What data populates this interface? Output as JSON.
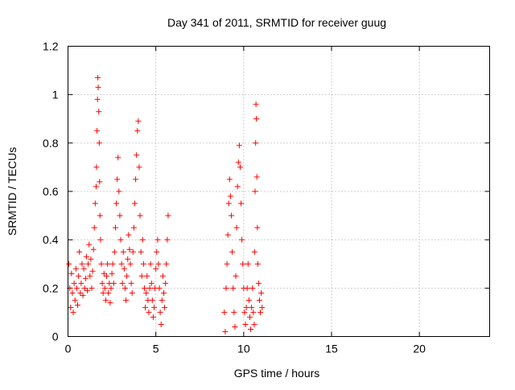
{
  "chart_data": {
    "type": "scatter",
    "title": "Day 341 of 2011, SRMTID for receiver guug",
    "xlabel": "GPS time / hours",
    "ylabel": "SRMTID / TECUs",
    "xlim": [
      0,
      24
    ],
    "ylim": [
      0,
      1.2
    ],
    "xticks": [
      0,
      5,
      10,
      15,
      20
    ],
    "yticks": [
      0,
      0.2,
      0.4,
      0.6,
      0.8,
      1,
      1.2
    ],
    "xtick_labels": [
      "0",
      "5",
      "10",
      "15",
      "20"
    ],
    "ytick_labels": [
      "0",
      "0.2",
      "0.4",
      "0.6",
      "0.8",
      "1",
      "1.2"
    ],
    "grid": true,
    "legend": "none",
    "marker": "plus",
    "color": "#ff0000",
    "series": [
      {
        "x": [
          0.05,
          0.1,
          0.15,
          0.2,
          0.25,
          0.3,
          0.35,
          0.4,
          0.45,
          0.5,
          0.55,
          0.6,
          0.65,
          0.7,
          0.75,
          0.8,
          0.85,
          0.9,
          0.95,
          1.0,
          1.05,
          1.1,
          1.15,
          1.2,
          1.25,
          1.3,
          1.35,
          1.4,
          1.45,
          1.5,
          1.55,
          1.6,
          1.62,
          1.65,
          1.68,
          1.7,
          1.72,
          1.75,
          1.78,
          1.8,
          1.82,
          1.85,
          1.9,
          1.95,
          2.0,
          2.05,
          2.1,
          2.15,
          2.2,
          2.25,
          2.3,
          2.35,
          2.4,
          2.45,
          2.5,
          2.55,
          2.6,
          2.65,
          2.7,
          2.75,
          2.8,
          2.85,
          2.9,
          2.95,
          3.0,
          3.05,
          3.1,
          3.15,
          3.2,
          3.25,
          3.3,
          3.35,
          3.4,
          3.45,
          3.5,
          3.55,
          3.6,
          3.65,
          3.7,
          3.75,
          3.8,
          3.85,
          3.9,
          3.95,
          4.0,
          4.05,
          4.1,
          4.15,
          4.2,
          4.25,
          4.3,
          4.35,
          4.4,
          4.45,
          4.5,
          4.55,
          4.6,
          4.65,
          4.7,
          4.75,
          4.8,
          4.85,
          4.9,
          4.95,
          5.0,
          5.05,
          5.1,
          5.15,
          5.2,
          5.25,
          5.3,
          5.35,
          5.4,
          5.45,
          5.5,
          5.55,
          5.6,
          5.65,
          5.7
        ],
        "y": [
          0.3,
          0.2,
          0.12,
          0.26,
          0.18,
          0.1,
          0.22,
          0.15,
          0.28,
          0.2,
          0.13,
          0.25,
          0.35,
          0.18,
          0.22,
          0.3,
          0.17,
          0.28,
          0.2,
          0.24,
          0.33,
          0.19,
          0.3,
          0.38,
          0.25,
          0.32,
          0.2,
          0.27,
          0.36,
          0.45,
          0.55,
          0.62,
          0.7,
          0.85,
          0.98,
          1.07,
          1.03,
          0.93,
          0.8,
          0.64,
          0.5,
          0.4,
          0.3,
          0.22,
          0.18,
          0.26,
          0.2,
          0.15,
          0.25,
          0.3,
          0.18,
          0.22,
          0.14,
          0.2,
          0.26,
          0.3,
          0.22,
          0.35,
          0.45,
          0.55,
          0.65,
          0.74,
          0.6,
          0.5,
          0.4,
          0.3,
          0.22,
          0.35,
          0.28,
          0.2,
          0.15,
          0.25,
          0.32,
          0.42,
          0.36,
          0.3,
          0.22,
          0.18,
          0.35,
          0.45,
          0.55,
          0.65,
          0.75,
          0.85,
          0.89,
          0.7,
          0.5,
          0.35,
          0.25,
          0.4,
          0.3,
          0.2,
          0.12,
          0.18,
          0.25,
          0.15,
          0.1,
          0.2,
          0.3,
          0.22,
          0.15,
          0.08,
          0.12,
          0.2,
          0.28,
          0.35,
          0.4,
          0.3,
          0.2,
          0.1,
          0.05,
          0.15,
          0.25,
          0.18,
          0.12,
          0.22,
          0.3,
          0.4,
          0.5
        ],
        "marker": "plus"
      },
      {
        "x": [
          8.9,
          8.95,
          9.0,
          9.05,
          9.1,
          9.15,
          9.2,
          9.25,
          9.3,
          9.35,
          9.4,
          9.45,
          9.5,
          9.55,
          9.6,
          9.65,
          9.7,
          9.75,
          9.8,
          9.85,
          9.9,
          9.95,
          10.0,
          10.05,
          10.1,
          10.15,
          10.2,
          10.25,
          10.3,
          10.35,
          10.4,
          10.45,
          10.5,
          10.55,
          10.6,
          10.62,
          10.65,
          10.68,
          10.7,
          10.72,
          10.75,
          10.78,
          10.8,
          10.85,
          10.9,
          10.95,
          11.0,
          11.05
        ],
        "y": [
          0.1,
          0.02,
          0.2,
          0.3,
          0.42,
          0.55,
          0.65,
          0.58,
          0.5,
          0.35,
          0.2,
          0.1,
          0.04,
          0.25,
          0.45,
          0.62,
          0.72,
          0.79,
          0.7,
          0.55,
          0.4,
          0.3,
          0.2,
          0.1,
          0.05,
          0.12,
          0.2,
          0.3,
          0.15,
          0.08,
          0.03,
          0.12,
          0.2,
          0.1,
          0.05,
          0.35,
          0.6,
          0.8,
          0.96,
          0.9,
          0.66,
          0.45,
          0.3,
          0.22,
          0.15,
          0.1,
          0.18,
          0.12
        ],
        "marker": "plus"
      }
    ]
  }
}
